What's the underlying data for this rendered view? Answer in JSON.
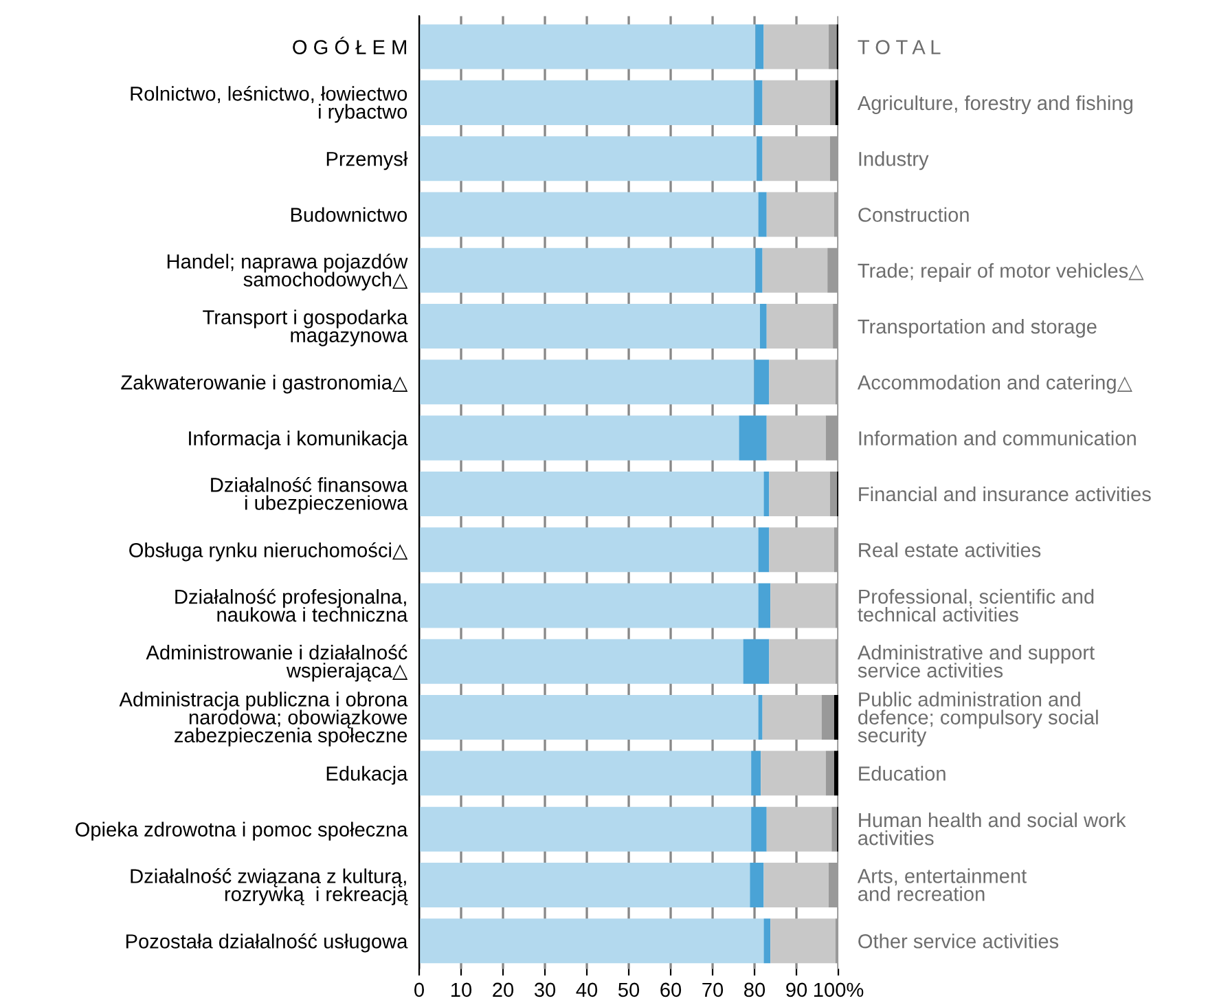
{
  "chart_data": {
    "type": "bar",
    "orientation": "horizontal",
    "stacked": true,
    "categories": [
      "O G Ó Ł E M",
      "Rolnictwo, leśnictwo, łowiectwo\ni rybactwo",
      "Przemysł",
      "Budownictwo",
      "Handel; naprawa pojazdów\nsamochodowych△",
      "Transport i gospodarka\nmagazynowa",
      "Zakwaterowanie i gastronomia△",
      "Informacja i komunikacja",
      "Działalność finansowa\ni ubezpieczeniowa",
      "Obsługa rynku nieruchomości△",
      "Działalność profesjonalna,\nnaukowa i techniczna",
      "Administrowanie i działalność\nwspierająca△",
      "Administracja publiczna i obrona\nnarodowa; obowiązkowe\nzabezpieczenia społeczne",
      "Edukacja",
      "Opieka zdrowotna i pomoc społeczna",
      "Działalność związana z kulturą,\nrozrywką  i rekreacją",
      "Pozostała działalność usługowa"
    ],
    "y2_categories": [
      "T O T A L",
      "Agriculture, forestry and fishing",
      "Industry",
      "Construction",
      "Trade; repair of motor vehicles△",
      "Transportation and storage",
      "Accommodation and catering△",
      "Information and communication",
      "Financial and insurance activities",
      "Real estate activities",
      "Professional, scientific and\ntechnical activities",
      "Administrative and support\nservice activities",
      "Public administration and\ndefence; compulsory social\nsecurity",
      "Education",
      "Human health and social work\nactivities",
      "Arts, entertainment\nand recreation",
      "Other service activities"
    ],
    "series": [
      {
        "color": "#b3d9ee",
        "values": [
          80.2,
          79.9,
          80.5,
          80.9,
          80.2,
          81.3,
          79.9,
          76.3,
          82.2,
          80.9,
          80.9,
          77.3,
          80.9,
          79.2,
          79.2,
          78.9,
          82.2
        ]
      },
      {
        "color": "#4aa3d6",
        "values": [
          2.0,
          2.0,
          1.4,
          2.0,
          1.7,
          1.6,
          3.6,
          6.6,
          1.3,
          2.6,
          2.9,
          6.2,
          1.0,
          2.3,
          3.7,
          3.3,
          1.6
        ]
      },
      {
        "color": "#c8c8c8",
        "values": [
          15.5,
          16.1,
          16.1,
          16.1,
          15.5,
          15.8,
          15.8,
          14.1,
          14.5,
          15.5,
          15.5,
          15.8,
          14.1,
          15.5,
          15.5,
          15.5,
          15.5
        ]
      },
      {
        "color": "#999999",
        "values": [
          1.9,
          1.3,
          2.0,
          1.0,
          2.6,
          1.3,
          0.7,
          3.0,
          1.7,
          1.0,
          0.7,
          0.7,
          3.0,
          2.0,
          1.3,
          2.3,
          0.7
        ]
      },
      {
        "color": "#000000",
        "values": [
          0.4,
          0.7,
          0,
          0,
          0,
          0,
          0,
          0,
          0.3,
          0,
          0,
          0,
          1.0,
          1.0,
          0.3,
          0,
          0
        ]
      }
    ],
    "xlim": [
      0,
      100
    ],
    "xticks": [
      0,
      10,
      20,
      30,
      40,
      50,
      60,
      70,
      80,
      90,
      {
        "value": 100,
        "label": "100%"
      }
    ],
    "grid": "x"
  }
}
